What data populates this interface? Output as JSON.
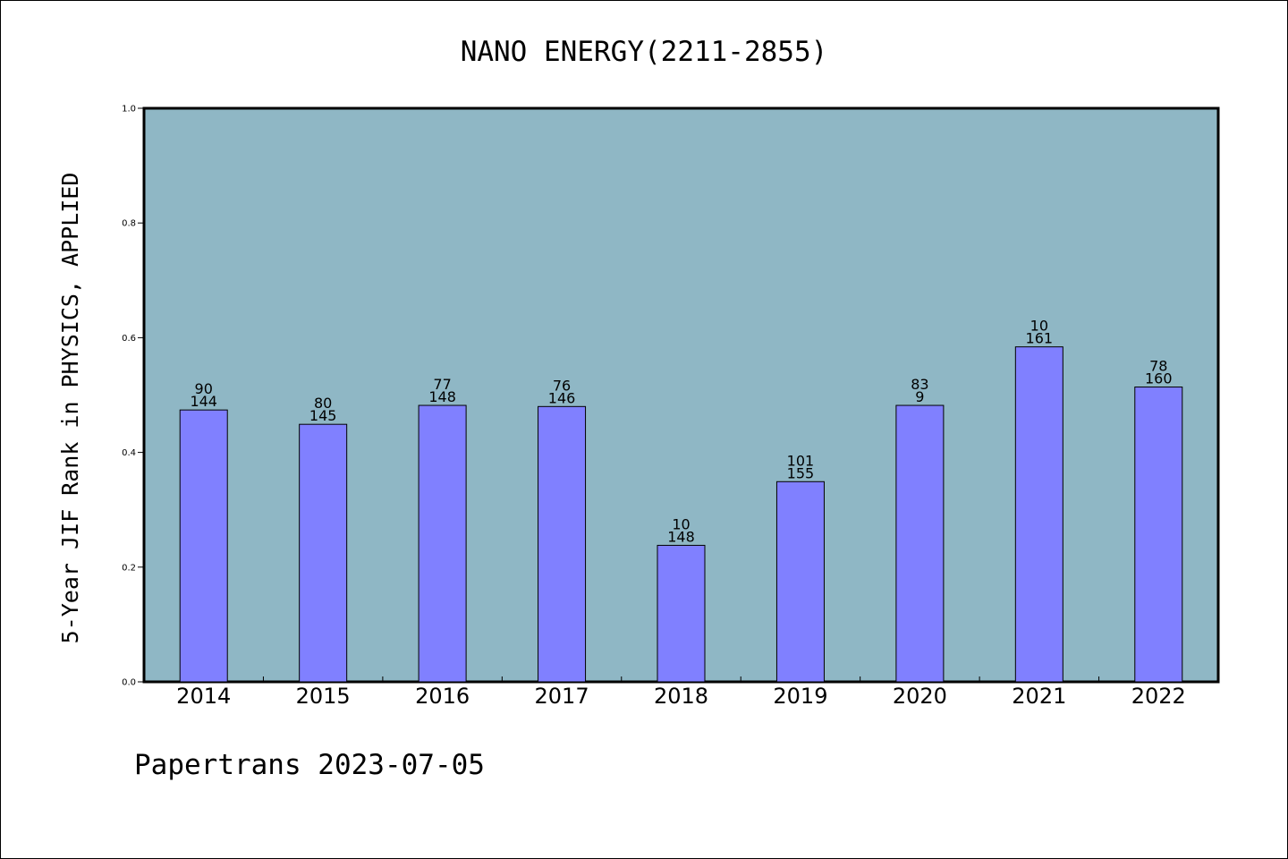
{
  "chart_data": {
    "type": "bar",
    "title": "NANO ENERGY(2211-2855)",
    "xlabel": "",
    "ylabel": "5-Year JIF Rank in PHYSICS, APPLIED",
    "ylim": [
      0,
      1.0
    ],
    "yticks": [
      "0.0",
      "0.2",
      "0.4",
      "0.6",
      "0.8",
      "1.0"
    ],
    "categories": [
      "2014",
      "2015",
      "2016",
      "2017",
      "2018",
      "2019",
      "2020",
      "2021",
      "2022"
    ],
    "values": [
      0.474,
      0.449,
      0.482,
      0.48,
      0.238,
      0.349,
      0.482,
      0.584,
      0.514
    ],
    "labels_top": [
      "90",
      "80",
      "77",
      "76",
      "10",
      "101",
      "83",
      "10",
      "78"
    ],
    "labels_bottom": [
      "144",
      "145",
      "148",
      "146",
      "148",
      "155",
      "9",
      "161",
      "160"
    ],
    "grid": false,
    "colors": {
      "plot_background": "#8fb7c5",
      "bar_fill": "#8080ff",
      "bar_stroke": "#000000"
    }
  },
  "footer": {
    "text": "Papertrans 2023-07-05"
  }
}
